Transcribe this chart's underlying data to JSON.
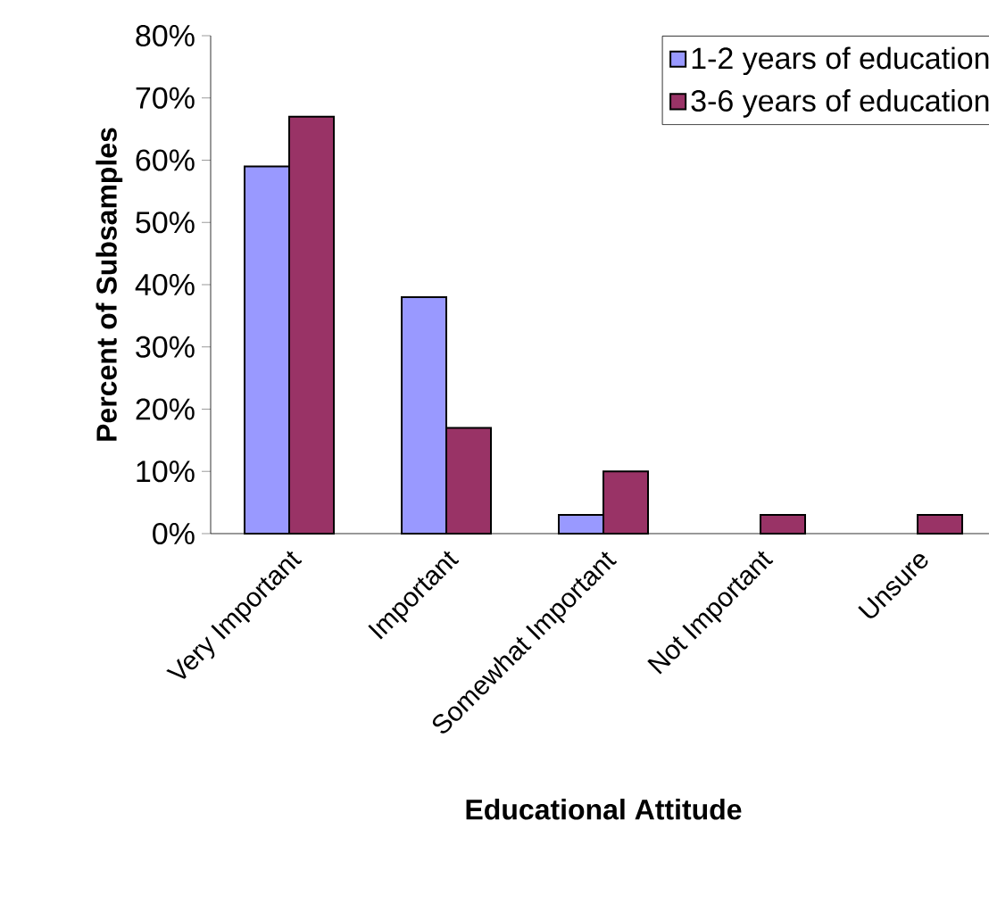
{
  "chart_data": {
    "type": "bar",
    "xlabel": "Educational Attitude",
    "ylabel": "Percent of Subsamples",
    "categories": [
      "Very Important",
      "Important",
      "Somewhat Important",
      "Not Important",
      "Unsure"
    ],
    "series": [
      {
        "name": "1-2 years of education",
        "color": "#9999ff",
        "values": [
          59,
          38,
          3,
          null,
          null
        ]
      },
      {
        "name": "3-6 years of education",
        "color": "#993366",
        "values": [
          67,
          17,
          10,
          3,
          3
        ]
      }
    ],
    "ylim": [
      0,
      80
    ],
    "yticks": [
      {
        "value": 0,
        "label": "0%"
      },
      {
        "value": 10,
        "label": "10%"
      },
      {
        "value": 20,
        "label": "20%"
      },
      {
        "value": 30,
        "label": "30%"
      },
      {
        "value": 40,
        "label": "40%"
      },
      {
        "value": 50,
        "label": "50%"
      },
      {
        "value": 60,
        "label": "60%"
      },
      {
        "value": 70,
        "label": "70%"
      },
      {
        "value": 80,
        "label": "80%"
      }
    ],
    "grid": false,
    "legend": "top right"
  }
}
